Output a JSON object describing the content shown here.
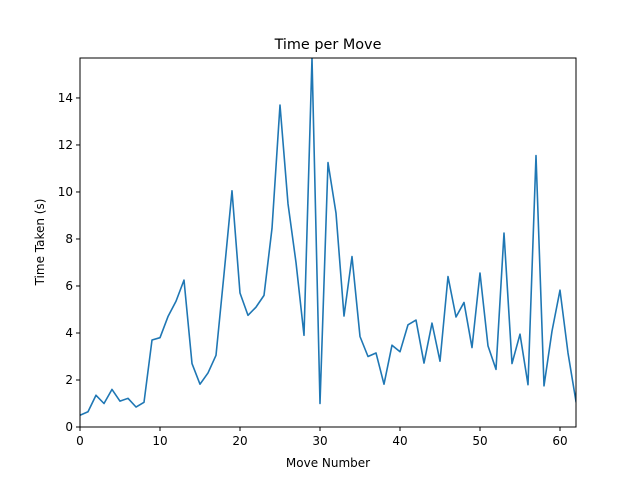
{
  "chart_data": {
    "type": "line",
    "title": "Time per Move",
    "xlabel": "Move Number",
    "ylabel": "Time Taken (s)",
    "xlim": [
      0,
      62
    ],
    "ylim": [
      0,
      15.7
    ],
    "xticks": [
      0,
      10,
      20,
      30,
      40,
      50,
      60
    ],
    "yticks": [
      0,
      2,
      4,
      6,
      8,
      10,
      12,
      14
    ],
    "grid": false,
    "legend": "none",
    "colors": {
      "series": "#1f77b4"
    },
    "series": [
      {
        "x": [
          0,
          1,
          2,
          3,
          4,
          5,
          6,
          7,
          8,
          9,
          10,
          11,
          12,
          13,
          14,
          15,
          16,
          17,
          18,
          19,
          20,
          21,
          22,
          23,
          24,
          25,
          26,
          27,
          28,
          29,
          30,
          31,
          32,
          33,
          34,
          35,
          36,
          37,
          38,
          39,
          40,
          41,
          42,
          43,
          44,
          45,
          46,
          47,
          48,
          49,
          50,
          51,
          52,
          53,
          54,
          55,
          56,
          57,
          58,
          59,
          60,
          61,
          62
        ],
        "values": [
          0.5,
          0.65,
          1.35,
          1.0,
          1.6,
          1.1,
          1.22,
          0.85,
          1.05,
          3.7,
          3.8,
          4.7,
          5.35,
          6.25,
          2.7,
          1.82,
          2.3,
          3.05,
          6.5,
          10.05,
          5.7,
          4.75,
          5.1,
          5.6,
          8.45,
          13.7,
          9.5,
          7.0,
          3.9,
          15.7,
          1.0,
          11.25,
          9.1,
          4.72,
          7.25,
          3.85,
          3.0,
          3.15,
          1.82,
          3.48,
          3.2,
          4.35,
          4.55,
          2.72,
          4.42,
          2.8,
          6.4,
          4.68,
          5.3,
          3.38,
          6.55,
          3.45,
          2.45,
          8.25,
          2.7,
          3.95,
          1.8,
          11.55,
          1.75,
          4.08,
          5.82,
          3.15,
          1.08
        ]
      }
    ]
  }
}
